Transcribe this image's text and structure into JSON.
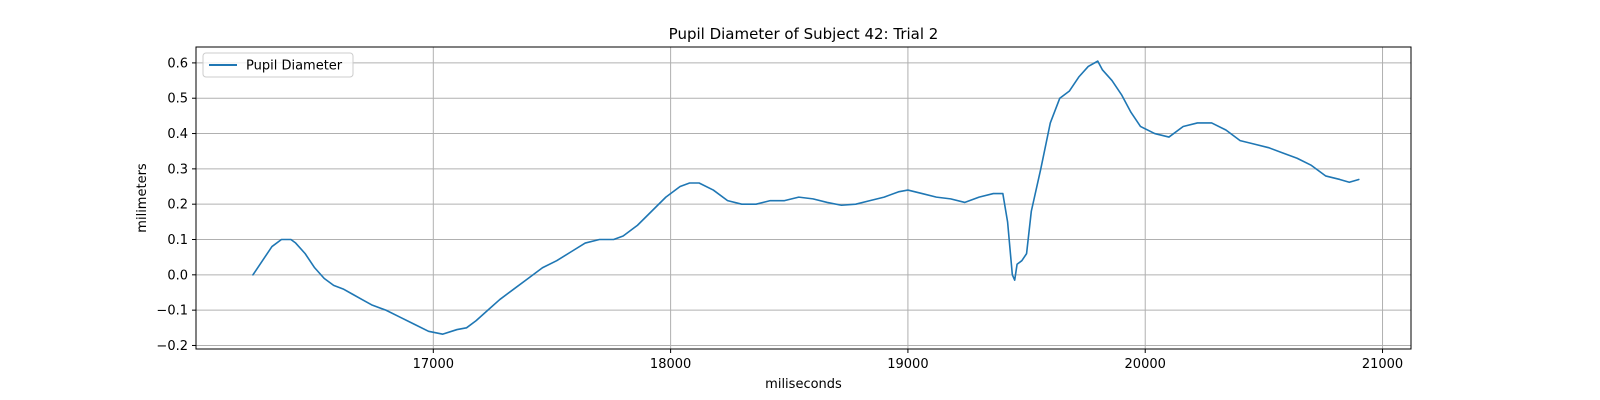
{
  "chart_data": {
    "type": "line",
    "title": "Pupil Diameter of Subject 42: Trial 2",
    "xlabel": "miliseconds",
    "ylabel": "milimeters",
    "xlim": [
      16000,
      21120
    ],
    "ylim": [
      -0.21,
      0.645
    ],
    "xticks": [
      17000,
      18000,
      19000,
      20000,
      21000
    ],
    "xtick_labels": [
      "17000",
      "18000",
      "19000",
      "20000",
      "21000"
    ],
    "yticks": [
      -0.2,
      -0.1,
      0.0,
      0.1,
      0.2,
      0.3,
      0.4,
      0.5,
      0.6
    ],
    "ytick_labels": [
      "−0.2",
      "−0.1",
      "0.0",
      "0.1",
      "0.2",
      "0.3",
      "0.4",
      "0.5",
      "0.6"
    ],
    "grid": true,
    "legend": {
      "position": "upper-left",
      "entries": [
        "Pupil Diameter"
      ]
    },
    "series": [
      {
        "name": "Pupil Diameter",
        "color": "#1f77b4",
        "x": [
          16240,
          16280,
          16320,
          16360,
          16400,
          16420,
          16460,
          16500,
          16540,
          16580,
          16620,
          16660,
          16700,
          16740,
          16800,
          16860,
          16920,
          16980,
          17040,
          17100,
          17140,
          17180,
          17230,
          17280,
          17340,
          17400,
          17460,
          17520,
          17580,
          17640,
          17700,
          17760,
          17800,
          17860,
          17920,
          17980,
          18040,
          18080,
          18120,
          18180,
          18240,
          18300,
          18360,
          18420,
          18480,
          18540,
          18600,
          18660,
          18720,
          18780,
          18840,
          18900,
          18960,
          19000,
          19060,
          19120,
          19180,
          19240,
          19300,
          19360,
          19400,
          19420,
          19440,
          19450,
          19460,
          19480,
          19500,
          19520,
          19560,
          19600,
          19640,
          19680,
          19720,
          19760,
          19800,
          19820,
          19860,
          19900,
          19940,
          19980,
          20040,
          20100,
          20160,
          20220,
          20280,
          20340,
          20400,
          20460,
          20520,
          20580,
          20640,
          20700,
          20760,
          20820,
          20860,
          20900
        ],
        "values": [
          0.0,
          0.04,
          0.08,
          0.1,
          0.1,
          0.09,
          0.06,
          0.02,
          -0.01,
          -0.03,
          -0.04,
          -0.055,
          -0.07,
          -0.085,
          -0.1,
          -0.12,
          -0.14,
          -0.16,
          -0.168,
          -0.155,
          -0.15,
          -0.13,
          -0.1,
          -0.07,
          -0.04,
          -0.01,
          0.02,
          0.04,
          0.065,
          0.09,
          0.1,
          0.1,
          0.11,
          0.14,
          0.18,
          0.22,
          0.25,
          0.26,
          0.26,
          0.24,
          0.21,
          0.2,
          0.2,
          0.21,
          0.21,
          0.22,
          0.215,
          0.205,
          0.197,
          0.2,
          0.21,
          0.22,
          0.235,
          0.24,
          0.23,
          0.22,
          0.215,
          0.205,
          0.22,
          0.23,
          0.23,
          0.15,
          0.0,
          -0.015,
          0.03,
          0.04,
          0.06,
          0.18,
          0.3,
          0.43,
          0.5,
          0.52,
          0.56,
          0.59,
          0.605,
          0.58,
          0.55,
          0.51,
          0.46,
          0.42,
          0.4,
          0.39,
          0.42,
          0.43,
          0.43,
          0.41,
          0.38,
          0.37,
          0.36,
          0.345,
          0.33,
          0.31,
          0.28,
          0.27,
          0.262,
          0.27
        ]
      }
    ]
  }
}
